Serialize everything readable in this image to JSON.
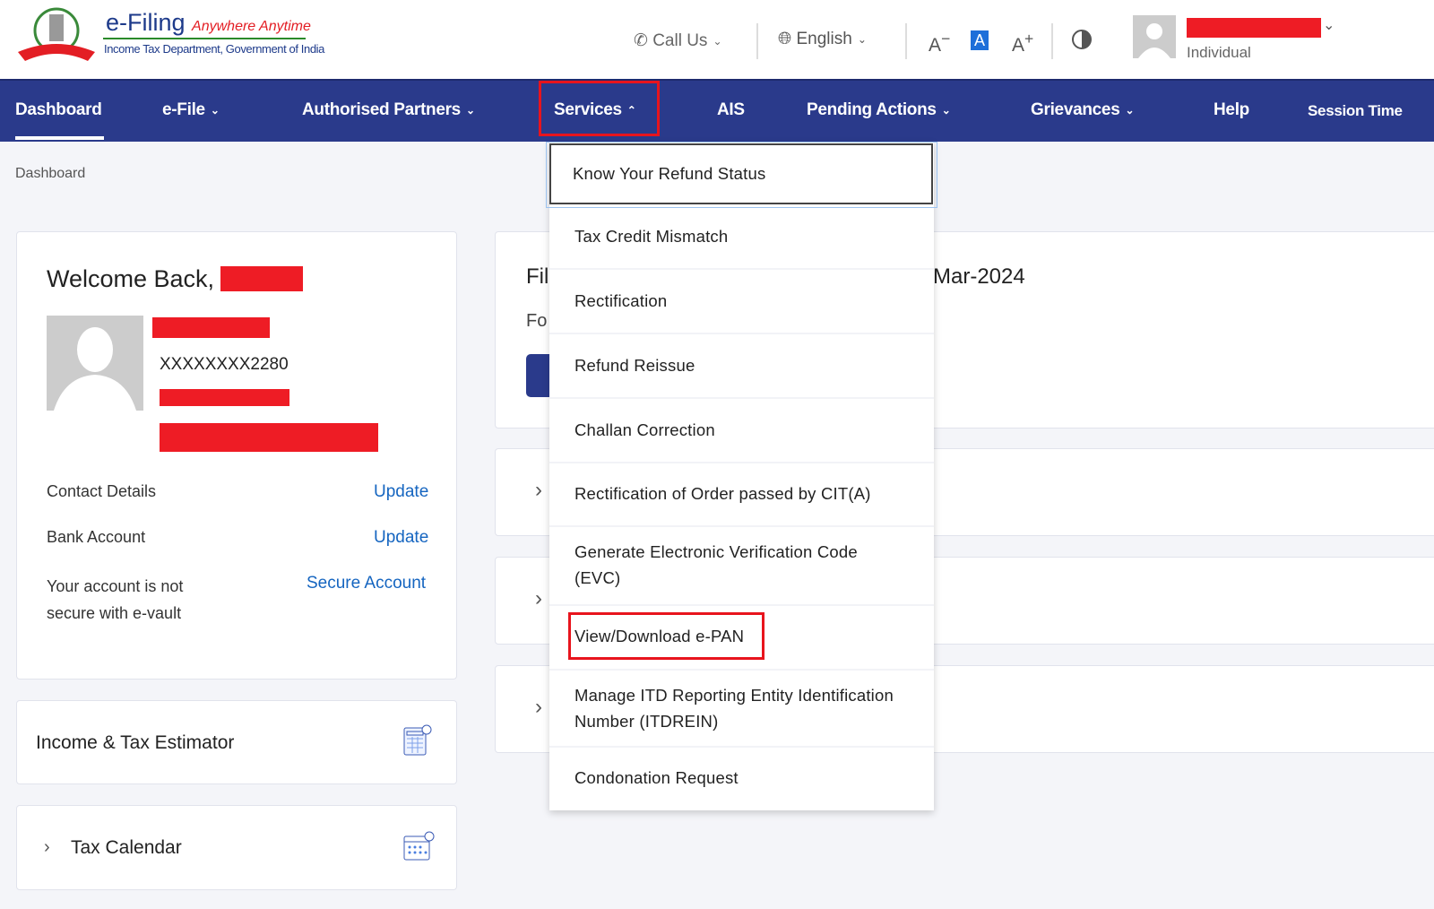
{
  "header": {
    "logo_title": "e-Filing",
    "logo_tagline": "Anywhere Anytime",
    "logo_subtitle": "Income Tax Department, Government of India",
    "emblem_text": "INCOME TAX DEPARTMENT",
    "call_us": "Call Us",
    "language": "English",
    "font_decrease": "A",
    "font_default": "A",
    "font_increase": "A",
    "user_role": "Individual"
  },
  "nav": {
    "items": [
      {
        "label": "Dashboard"
      },
      {
        "label": "e-File"
      },
      {
        "label": "Authorised Partners"
      },
      {
        "label": "Services"
      },
      {
        "label": "AIS"
      },
      {
        "label": "Pending Actions"
      },
      {
        "label": "Grievances"
      },
      {
        "label": "Help"
      },
      {
        "label": "Session Time"
      }
    ]
  },
  "breadcrumb": "Dashboard",
  "profile": {
    "welcome": "Welcome Back,",
    "pan": "XXXXXXXX2280",
    "contact_label": "Contact Details",
    "contact_action": "Update",
    "bank_label": "Bank Account",
    "bank_action": "Update",
    "vault_label_1": "Your account is not",
    "vault_label_2": "secure with e-vault",
    "vault_action": "Secure Account"
  },
  "estimator": {
    "title": "Income & Tax Estimator"
  },
  "calendar": {
    "title": "Tax Calendar"
  },
  "filing": {
    "title_start": "Fil",
    "title_end": "Mar-2024",
    "sub_start": "Fo"
  },
  "services_menu": {
    "items": [
      "Know Your Refund Status",
      "Tax Credit Mismatch",
      "Rectification",
      "Refund Reissue",
      "Challan Correction",
      "Rectification of Order passed by CIT(A)",
      "Generate Electronic Verification Code",
      "(EVC)",
      "View/Download e-PAN",
      "Manage ITD Reporting Entity Identification",
      "Number (ITDREIN)",
      "Condonation Request"
    ]
  },
  "colors": {
    "nav": "#2a3a8b",
    "highlight": "#e8141d",
    "link": "#1565c0"
  }
}
